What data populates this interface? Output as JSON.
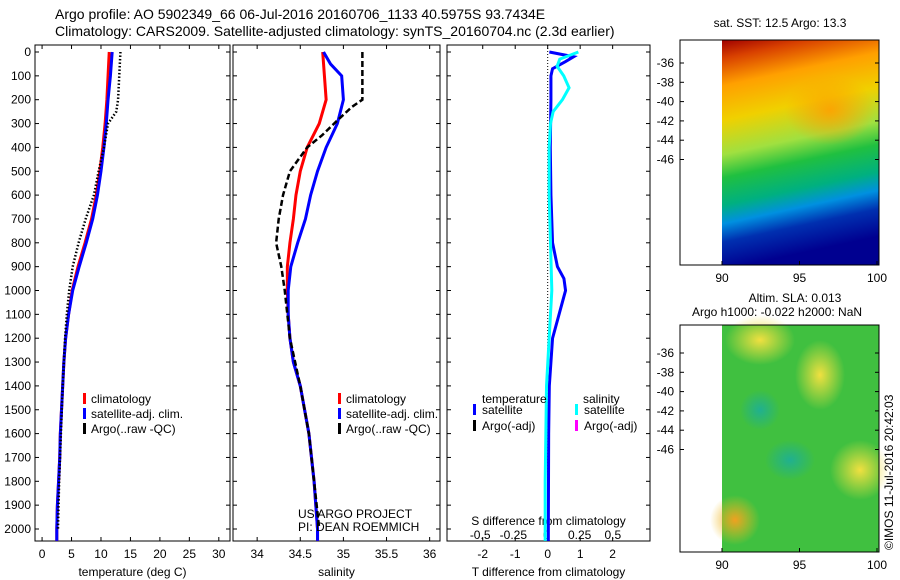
{
  "header": {
    "line1": "Argo profile: AO 5902349_66 06-Jul-2016 20160706_1133 40.5975S 93.7434E",
    "line2": "Climatology: CARS2009. Satellite-adjusted climatology: synTS_20160704.nc (2.3d earlier)"
  },
  "colors": {
    "clim": "#ff0000",
    "sat": "#0000ff",
    "argo": "#000000",
    "sal_sat": "#00ffff",
    "sal_argo": "#ff00ff"
  },
  "chart_data": [
    {
      "type": "line",
      "id": "temperature",
      "xlabel": "temperature (deg C)",
      "ylabel": "",
      "xlim": [
        -1.2,
        31.9
      ],
      "ylim": [
        2050,
        0
      ],
      "xticks": [
        0,
        5,
        10,
        15,
        20,
        25,
        30
      ],
      "yticks": [
        0,
        100,
        200,
        300,
        400,
        500,
        600,
        700,
        800,
        900,
        1000,
        1100,
        1200,
        1300,
        1400,
        1500,
        1600,
        1700,
        1800,
        1900,
        2000
      ],
      "legend": [
        "climatology",
        "satellite-adj. clim.",
        "Argo(..raw -QC)"
      ],
      "series": [
        {
          "name": "climatology",
          "color": "#ff0000",
          "depth": [
            0,
            100,
            200,
            300,
            400,
            500,
            600,
            700,
            800,
            900,
            1000,
            1100,
            1200,
            1300,
            1400,
            1500,
            1600,
            1700,
            1800,
            1900,
            2000,
            2050
          ],
          "values": [
            11.4,
            11.2,
            11.0,
            10.7,
            10.3,
            9.8,
            9.2,
            8.4,
            7.3,
            6.1,
            5.1,
            4.5,
            4.0,
            3.7,
            3.5,
            3.3,
            3.1,
            3.0,
            2.8,
            2.6,
            2.5,
            2.5
          ]
        },
        {
          "name": "satellite-adj. clim.",
          "color": "#0000ff",
          "depth": [
            0,
            100,
            200,
            300,
            400,
            500,
            600,
            700,
            800,
            900,
            1000,
            1100,
            1200,
            1300,
            1400,
            1500,
            1600,
            1700,
            1800,
            1900,
            2000,
            2050
          ],
          "values": [
            11.9,
            11.6,
            11.2,
            10.9,
            10.5,
            10.0,
            9.4,
            8.6,
            7.5,
            6.3,
            5.2,
            4.5,
            4.0,
            3.7,
            3.5,
            3.3,
            3.1,
            3.0,
            2.8,
            2.6,
            2.5,
            2.5
          ]
        },
        {
          "name": "Argo(..raw -QC)",
          "color": "#000000",
          "dotted": true,
          "depth": [
            0,
            100,
            200,
            250,
            300,
            400,
            500,
            600,
            700,
            800,
            900,
            1000,
            1100,
            1200,
            1400,
            1600,
            1800,
            2000
          ],
          "values": [
            13.3,
            13.1,
            12.9,
            12.6,
            11.2,
            10.5,
            9.6,
            8.8,
            7.4,
            6.2,
            5.2,
            4.6,
            4.2,
            3.9,
            3.5,
            3.2,
            2.9,
            2.7
          ]
        }
      ]
    },
    {
      "type": "line",
      "id": "salinity",
      "xlabel": "salinity",
      "xlim": [
        33.72,
        36.12
      ],
      "ylim": [
        2050,
        0
      ],
      "xticks": [
        34,
        34.5,
        35,
        35.5,
        36
      ],
      "legend": [
        "climatology",
        "satellite-adj. clim.",
        "Argo(..raw -QC)"
      ],
      "annotation": [
        "US ARGO PROJECT",
        "PI: DEAN ROEMMICH"
      ],
      "series": [
        {
          "name": "climatology",
          "color": "#ff0000",
          "depth": [
            0,
            100,
            200,
            300,
            400,
            500,
            600,
            700,
            800,
            900,
            1000,
            1100,
            1200,
            1300,
            1400,
            1500,
            1600,
            1700,
            1800,
            1900,
            2000,
            2050
          ],
          "values": [
            34.76,
            34.78,
            34.8,
            34.72,
            34.58,
            34.5,
            34.45,
            34.42,
            34.38,
            34.35,
            34.35,
            34.36,
            34.38,
            34.42,
            34.5,
            34.55,
            34.6,
            34.63,
            34.66,
            34.68,
            34.7,
            34.7
          ]
        },
        {
          "name": "satellite-adj. clim.",
          "color": "#0000ff",
          "depth": [
            0,
            50,
            100,
            200,
            300,
            400,
            500,
            600,
            700,
            800,
            900,
            1000,
            1100,
            1200,
            1300,
            1400,
            1500,
            1600,
            1700,
            1800,
            1900,
            2000,
            2050
          ],
          "values": [
            34.77,
            34.85,
            34.98,
            35.0,
            34.93,
            34.8,
            34.7,
            34.62,
            34.56,
            34.47,
            34.39,
            34.36,
            34.36,
            34.38,
            34.42,
            34.5,
            34.55,
            34.6,
            34.63,
            34.66,
            34.68,
            34.7,
            34.7
          ]
        },
        {
          "name": "Argo(..raw -QC)",
          "color": "#000000",
          "dotted": true,
          "depth": [
            0,
            200,
            230,
            280,
            350,
            400,
            500,
            600,
            700,
            800,
            900,
            1000,
            1100,
            1200,
            1400,
            1600,
            1800,
            2000
          ],
          "values": [
            35.22,
            35.22,
            35.1,
            34.95,
            34.75,
            34.58,
            34.38,
            34.3,
            34.25,
            34.22,
            34.28,
            34.32,
            34.35,
            34.38,
            34.5,
            34.6,
            34.66,
            34.72
          ]
        }
      ]
    },
    {
      "type": "line",
      "id": "difference",
      "xlabel": "T difference from climatology",
      "x2label": "S difference from climatology",
      "xlim": [
        -3.1,
        3.15
      ],
      "x2lim": [
        -0.75,
        0.78
      ],
      "ylim": [
        2050,
        0
      ],
      "xticks": [
        -2,
        -1,
        0,
        1,
        2
      ],
      "x2ticks": [
        -0.5,
        -0.25,
        0,
        0.25,
        0.5
      ],
      "legend": {
        "temperature_title": "temperature",
        "salinity_title": "salinity",
        "items": [
          {
            "label": "satellite",
            "color": "#0000ff"
          },
          {
            "label": "Argo(-adj)",
            "color": "#000000"
          },
          {
            "label": "satellite",
            "color": "#00ffff"
          },
          {
            "label": "Argo(-adj)",
            "color": "#ff00ff"
          }
        ]
      },
      "series": [
        {
          "name": "T satellite",
          "axis": "T",
          "color": "#0000ff",
          "depth": [
            0,
            20,
            40,
            70,
            100,
            200,
            400,
            600,
            800,
            900,
            950,
            1000,
            1050,
            1100,
            1200,
            1400,
            1600,
            2000,
            2050
          ],
          "values": [
            0.05,
            0.8,
            0.55,
            0.15,
            0.1,
            0.1,
            0.08,
            0.1,
            0.15,
            0.3,
            0.5,
            0.55,
            0.45,
            0.35,
            0.15,
            0.05,
            0.03,
            0.02,
            0.02
          ]
        },
        {
          "name": "S satellite",
          "axis": "S",
          "color": "#00ffff",
          "depth": [
            0,
            30,
            60,
            100,
            150,
            200,
            250,
            300,
            400,
            600,
            800,
            1000,
            1400,
            1800,
            2050
          ],
          "values": [
            0.24,
            0.1,
            0.08,
            0.13,
            0.17,
            0.12,
            0.05,
            0.03,
            0.02,
            0.02,
            0.03,
            0.04,
            0.0,
            -0.01,
            -0.01
          ]
        }
      ]
    }
  ],
  "maps": {
    "sst": {
      "title": "sat. SST: 12.5 Argo: 13.3",
      "xticks": [
        90,
        95,
        100
      ],
      "yticks": [
        -36,
        -38,
        -40,
        -42,
        -44,
        -46
      ]
    },
    "sla": {
      "title1": "Altim. SLA: 0.013",
      "title2": "Argo h1000: -0.022 h2000: NaN",
      "xticks": [
        90,
        95,
        100
      ],
      "yticks": [
        -36,
        -38,
        -40,
        -42,
        -44,
        -46
      ]
    }
  },
  "credit": "©IMOS 11-Jul-2016 20:42:03"
}
